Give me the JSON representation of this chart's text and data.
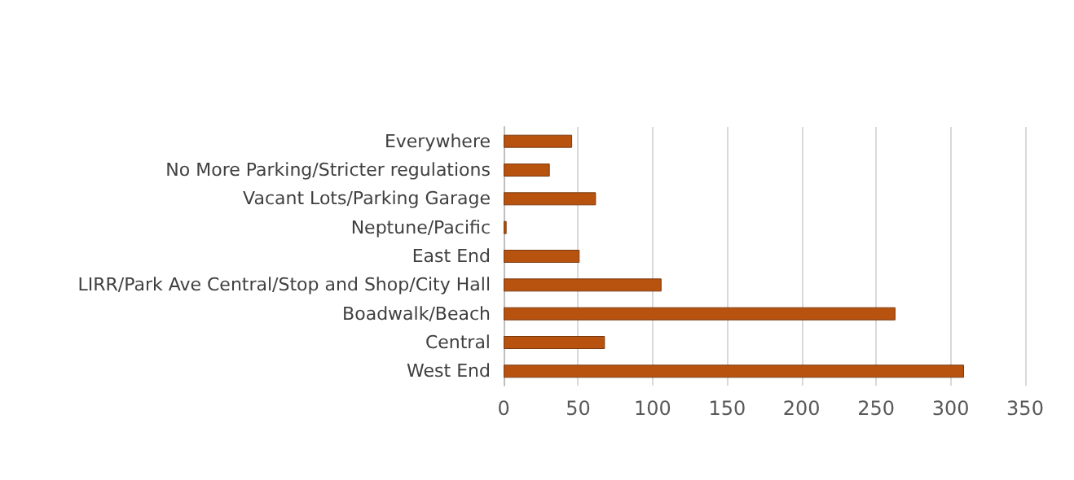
{
  "chart_data": {
    "type": "bar",
    "orientation": "horizontal",
    "categories": [
      "Everywhere",
      "No More Parking/Stricter regulations",
      "Vacant Lots/Parking Garage",
      "Neptune/Pacific",
      "East End",
      "LIRR/Park Ave Central/Stop and Shop/City Hall",
      "Boadwalk/Beach",
      "Central",
      "West End"
    ],
    "values": [
      46,
      31,
      62,
      2,
      51,
      106,
      263,
      68,
      309
    ],
    "color": "#b8520f",
    "xlim": [
      0,
      350
    ],
    "xticks": [
      0,
      50,
      100,
      150,
      200,
      250,
      300,
      350
    ],
    "grid": "x"
  }
}
